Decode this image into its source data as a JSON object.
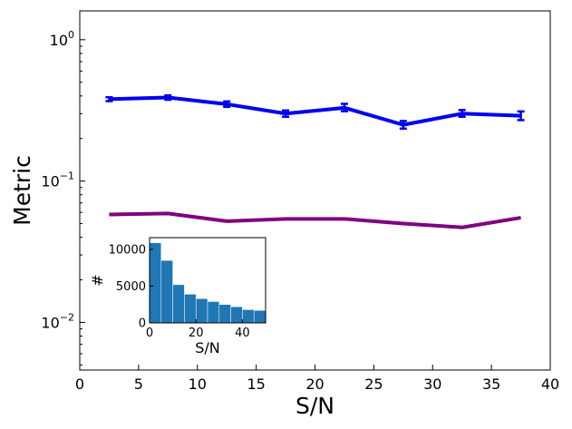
{
  "chart_data": [
    {
      "type": "line",
      "xlabel": "S/N",
      "ylabel": "Metric",
      "xlim": [
        0,
        40
      ],
      "ylim": [
        0.0046,
        1.6
      ],
      "yscale": "log",
      "x_ticks": [
        0,
        5,
        10,
        15,
        20,
        25,
        30,
        35,
        40
      ],
      "y_ticks": [
        {
          "value": 1.0,
          "base": "10",
          "exp": "0"
        },
        {
          "value": 0.1,
          "base": "10",
          "exp": "−1"
        },
        {
          "value": 0.01,
          "base": "10",
          "exp": "−2"
        }
      ],
      "grid": false,
      "x": [
        2.5,
        7.5,
        12.5,
        17.5,
        22.5,
        27.5,
        32.5,
        37.5
      ],
      "series": [
        {
          "color": "#0000ee",
          "values": [
            0.38,
            0.39,
            0.35,
            0.3,
            0.33,
            0.25,
            0.3,
            0.29
          ],
          "err_low": [
            0.368,
            0.376,
            0.335,
            0.285,
            0.312,
            0.235,
            0.285,
            0.27
          ],
          "err_high": [
            0.392,
            0.404,
            0.366,
            0.316,
            0.352,
            0.266,
            0.318,
            0.311
          ]
        },
        {
          "color": "#800080",
          "values": [
            0.058,
            0.059,
            0.052,
            0.054,
            0.054,
            0.05,
            0.047,
            0.055
          ]
        }
      ]
    },
    {
      "type": "bar",
      "inset": true,
      "xlabel": "S/N",
      "ylabel": "#",
      "xlim": [
        0,
        50
      ],
      "ylim": [
        0,
        11600
      ],
      "x_ticks": [
        0,
        20,
        40
      ],
      "y_ticks": [
        0,
        5000,
        10000
      ],
      "bin_edges": [
        0,
        5,
        10,
        15,
        20,
        25,
        30,
        35,
        40,
        45,
        50
      ],
      "values": [
        10900,
        8500,
        5200,
        3900,
        3300,
        2900,
        2500,
        2200,
        1800,
        1700
      ],
      "color": "#1f77b4"
    }
  ]
}
